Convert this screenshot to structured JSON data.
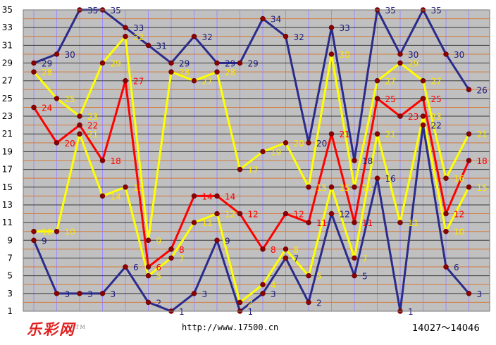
{
  "chart_data": {
    "type": "line",
    "ylim": [
      1,
      35
    ],
    "y_ticks": [
      "1",
      "3",
      "5",
      "7",
      "9",
      "11",
      "13",
      "15",
      "17",
      "19",
      "21",
      "23",
      "25",
      "27",
      "29",
      "31",
      "33",
      "35"
    ],
    "x": [
      1,
      2,
      3,
      4,
      5,
      6,
      7,
      8,
      9,
      10,
      11,
      12,
      13,
      14,
      15,
      16,
      17,
      18,
      19,
      20
    ],
    "grid": true,
    "series": [
      {
        "color": "#2b2b8c",
        "label_color": "#1a1a80",
        "values": [
          29,
          30,
          35,
          35,
          33,
          31,
          29,
          32,
          29,
          29,
          34,
          32,
          20,
          33,
          18,
          35,
          30,
          35,
          30,
          26
        ]
      },
      {
        "color": "#2b2b8c",
        "label_color": "#1a1a80",
        "values": [
          9,
          3,
          3,
          3,
          6,
          2,
          1,
          3,
          9,
          1,
          3,
          7,
          2,
          12,
          5,
          16,
          1,
          22,
          6,
          3
        ]
      },
      {
        "color": "#ff0000",
        "label_color": "#ff0000",
        "values": [
          24,
          20,
          22,
          18,
          27,
          6,
          8,
          14,
          14,
          12,
          8,
          12,
          11,
          21,
          11,
          25,
          23,
          25,
          12,
          18
        ]
      },
      {
        "color": "#ffff00",
        "label_color": "#ffe600",
        "values": [
          28,
          25,
          23,
          29,
          32,
          9,
          28,
          27,
          28,
          17,
          19,
          20,
          15,
          30,
          15,
          27,
          29,
          27,
          16,
          21
        ]
      },
      {
        "color": "#ffff00",
        "label_color": "#ffe600",
        "values": [
          10,
          10,
          21,
          14,
          15,
          5,
          7,
          11,
          12,
          2,
          4,
          8,
          5,
          15,
          7,
          21,
          11,
          23,
          10,
          15
        ]
      }
    ]
  },
  "footer": {
    "logo": "乐彩网",
    "logo_mark": "TM",
    "url": "http://www.17500.cn",
    "range": "14027～14046"
  }
}
